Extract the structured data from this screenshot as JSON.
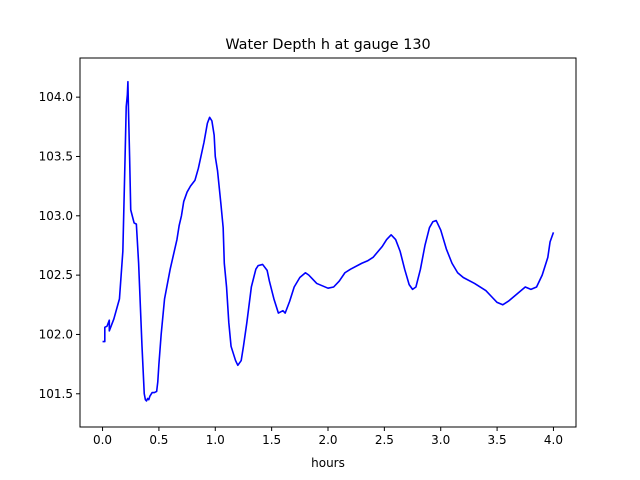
{
  "chart_data": {
    "type": "line",
    "title": "Water Depth h at gauge 130",
    "xlabel": "hours",
    "ylabel": "",
    "xlim": [
      -0.2,
      4.2
    ],
    "ylim": [
      101.22,
      104.33
    ],
    "x_ticks": [
      "0.0",
      "0.5",
      "1.0",
      "1.5",
      "2.0",
      "2.5",
      "3.0",
      "3.5",
      "4.0"
    ],
    "x_tick_values": [
      0.0,
      0.5,
      1.0,
      1.5,
      2.0,
      2.5,
      3.0,
      3.5,
      4.0
    ],
    "y_ticks": [
      "101.5",
      "102.0",
      "102.5",
      "103.0",
      "103.5",
      "104.0"
    ],
    "y_tick_values": [
      101.5,
      102.0,
      102.5,
      103.0,
      103.5,
      104.0
    ],
    "grid": false,
    "line_color": "#0000ff",
    "series": [
      {
        "x": [
          0.0,
          0.02,
          0.02,
          0.04,
          0.06,
          0.06,
          0.08,
          0.1,
          0.15,
          0.18,
          0.2,
          0.21,
          0.22,
          0.225,
          0.23,
          0.24,
          0.25,
          0.28,
          0.3,
          0.32,
          0.35,
          0.37,
          0.38,
          0.39,
          0.4,
          0.41,
          0.42,
          0.44,
          0.46,
          0.48,
          0.49,
          0.5,
          0.52,
          0.55,
          0.6,
          0.66,
          0.68,
          0.7,
          0.72,
          0.75,
          0.78,
          0.82,
          0.85,
          0.9,
          0.93,
          0.95,
          0.97,
          0.99,
          1.0,
          1.02,
          1.05,
          1.07,
          1.08,
          1.1,
          1.12,
          1.14,
          1.18,
          1.2,
          1.23,
          1.25,
          1.28,
          1.32,
          1.36,
          1.38,
          1.42,
          1.46,
          1.48,
          1.52,
          1.56,
          1.6,
          1.62,
          1.66,
          1.7,
          1.75,
          1.8,
          1.83,
          1.86,
          1.9,
          2.0,
          2.05,
          2.1,
          2.15,
          2.2,
          2.3,
          2.35,
          2.4,
          2.48,
          2.52,
          2.56,
          2.6,
          2.64,
          2.68,
          2.72,
          2.75,
          2.78,
          2.82,
          2.86,
          2.9,
          2.93,
          2.96,
          3.0,
          3.05,
          3.1,
          3.15,
          3.2,
          3.3,
          3.4,
          3.45,
          3.5,
          3.55,
          3.6,
          3.7,
          3.75,
          3.8,
          3.85,
          3.9,
          3.95,
          3.97,
          4.0
        ],
        "y": [
          101.94,
          101.94,
          102.06,
          102.07,
          102.12,
          102.03,
          102.08,
          102.13,
          102.3,
          102.7,
          103.5,
          103.92,
          104.02,
          104.13,
          103.9,
          103.5,
          103.05,
          102.94,
          102.93,
          102.6,
          101.9,
          101.5,
          101.45,
          101.44,
          101.46,
          101.45,
          101.48,
          101.51,
          101.51,
          101.52,
          101.6,
          101.75,
          102.0,
          102.3,
          102.55,
          102.8,
          102.92,
          103.0,
          103.12,
          103.2,
          103.25,
          103.3,
          103.4,
          103.62,
          103.78,
          103.83,
          103.8,
          103.68,
          103.5,
          103.38,
          103.1,
          102.9,
          102.6,
          102.4,
          102.1,
          101.9,
          101.78,
          101.74,
          101.78,
          101.9,
          102.1,
          102.4,
          102.55,
          102.58,
          102.59,
          102.54,
          102.45,
          102.3,
          102.18,
          102.2,
          102.18,
          102.28,
          102.4,
          102.48,
          102.52,
          102.5,
          102.47,
          102.43,
          102.39,
          102.4,
          102.45,
          102.52,
          102.55,
          102.6,
          102.62,
          102.65,
          102.74,
          102.8,
          102.84,
          102.8,
          102.7,
          102.55,
          102.42,
          102.38,
          102.4,
          102.55,
          102.75,
          102.9,
          102.95,
          102.96,
          102.88,
          102.72,
          102.6,
          102.52,
          102.48,
          102.43,
          102.37,
          102.32,
          102.27,
          102.25,
          102.28,
          102.36,
          102.4,
          102.38,
          102.4,
          102.5,
          102.65,
          102.78,
          102.86
        ]
      }
    ]
  }
}
